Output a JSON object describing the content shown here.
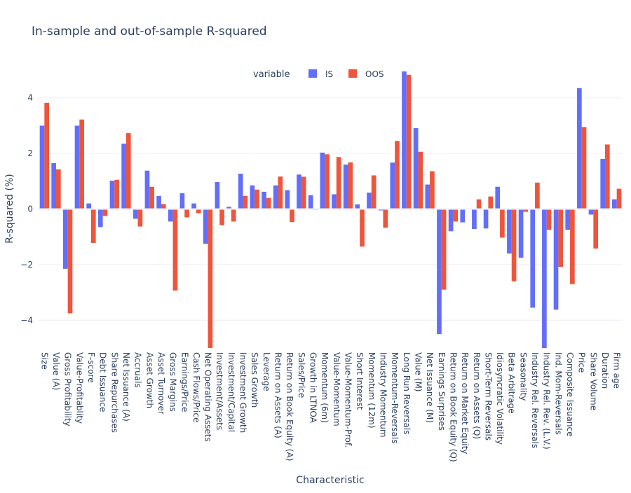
{
  "chart_data": {
    "type": "bar",
    "title": "In-sample and out-of-sample R-squared",
    "xlabel": "Characteristic",
    "ylabel": "R-squared (%)",
    "ylim": [
      -5,
      5
    ],
    "yticks": [
      -4,
      -2,
      0,
      2,
      4
    ],
    "grid": true,
    "legend": {
      "title": "variable",
      "placement": "top-center"
    },
    "categories": [
      "Size",
      "Value (A)",
      "Gross Profitability",
      "Value-Profitablity",
      "F-score",
      "Debt Issuance",
      "Share Repurchases",
      "Net Issuance (A)",
      "Accruals",
      "Asset Growth",
      "Asset Turnover",
      "Gross Margins",
      "Earnings/Price",
      "Cash Flows/Price",
      "Net Operating Assets",
      "Investment/Assets",
      "Investment/Capital",
      "Investment Growth",
      "Sales Growth",
      "Leverage",
      "Return on Assets (A)",
      "Return on Book Equity (A)",
      "Sales/Price",
      "Growth in LTNOA",
      "Momentum (6m)",
      "Value-Momentum",
      "Value-Momentum-Prof.",
      "Short Interest",
      "Momentum (12m)",
      "Industry Momentum",
      "Momentum-Reversals",
      "Long Run Reversals",
      "Value (M)",
      "Net Issuance (M)",
      "Earnings Surprises",
      "Return on Book Equity (Q)",
      "Return on Market Equity",
      "Return on Assets (Q)",
      "Short-Term Reversals",
      "Idiosyncratic Volatility",
      "Beta Arbitrage",
      "Seasonality",
      "Industry Rel. Reversals",
      "Industry Rel. Rev. (L.V.)",
      "Ind. Mom-Reversals",
      "Composite Issuance",
      "Price",
      "Share Volume",
      "Duration",
      "Firm age"
    ],
    "series": [
      {
        "name": "IS",
        "color": "#636efa",
        "values": [
          3.0,
          1.65,
          -2.15,
          3.0,
          0.2,
          -0.65,
          1.02,
          2.35,
          -0.35,
          1.38,
          0.47,
          -0.45,
          0.57,
          0.2,
          -1.25,
          0.97,
          0.08,
          1.27,
          0.85,
          0.62,
          0.85,
          0.68,
          1.24,
          0.5,
          2.03,
          0.53,
          1.6,
          0.17,
          0.59,
          -0.05,
          1.67,
          4.95,
          2.91,
          0.88,
          -4.5,
          -0.8,
          -0.48,
          -0.72,
          -0.7,
          0.8,
          -1.6,
          -1.75,
          -3.55,
          -5.0,
          -3.62,
          -0.75,
          4.35,
          -0.2,
          1.8,
          0.35
        ]
      },
      {
        "name": "OOS",
        "color": "#ef553b",
        "values": [
          3.82,
          1.43,
          -3.75,
          3.22,
          -1.22,
          -0.25,
          1.05,
          2.73,
          -0.63,
          0.8,
          0.18,
          -2.93,
          -0.3,
          -0.15,
          -5.0,
          -0.58,
          -0.45,
          0.47,
          0.7,
          0.4,
          1.17,
          -0.47,
          1.16,
          -0.03,
          1.97,
          1.87,
          1.68,
          -1.35,
          1.21,
          -0.67,
          2.45,
          4.83,
          2.06,
          1.36,
          -2.9,
          -0.45,
          0.0,
          0.35,
          0.45,
          -1.03,
          -2.6,
          -0.1,
          0.95,
          -0.75,
          -2.08,
          -2.7,
          2.95,
          -1.42,
          2.32,
          0.73
        ]
      }
    ]
  }
}
